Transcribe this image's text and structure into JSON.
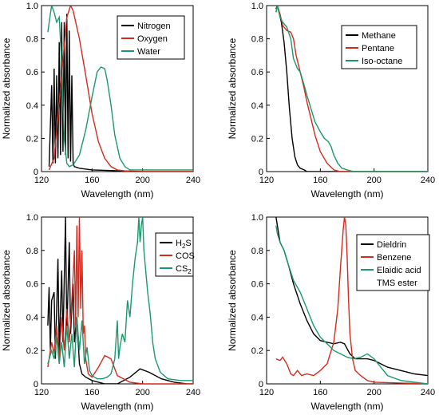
{
  "chart_data": [
    {
      "type": "line",
      "panel": "top-left",
      "xlabel": "Wavelength (nm)",
      "ylabel": "Normalized absorbance",
      "xlim": [
        120,
        240
      ],
      "ylim": [
        0,
        1.0
      ],
      "xticks": [
        120,
        160,
        200,
        240
      ],
      "yticks": [
        0,
        0.2,
        0.4,
        0.6,
        0.8,
        1.0
      ],
      "legend_position": "top-right",
      "series": [
        {
          "name": "Nitrogen",
          "color": "#000000",
          "x": [
            126,
            128,
            129,
            130,
            131,
            132,
            133,
            134,
            135,
            136,
            137,
            138,
            139,
            140,
            141,
            142,
            143,
            144,
            145,
            146,
            150,
            160,
            200,
            240
          ],
          "y": [
            0.03,
            0.52,
            0.05,
            0.62,
            0.05,
            0.58,
            0.08,
            0.78,
            0.1,
            0.9,
            0.12,
            0.9,
            0.1,
            0.95,
            0.08,
            0.85,
            0.06,
            0.58,
            0.05,
            0.03,
            0.02,
            0.01,
            0.0,
            0.0
          ]
        },
        {
          "name": "Oxygen",
          "color": "#d62a1e",
          "x": [
            126,
            130,
            135,
            140,
            143,
            145,
            150,
            155,
            160,
            165,
            170,
            175,
            180,
            190,
            200,
            240
          ],
          "y": [
            0.01,
            0.08,
            0.5,
            0.93,
            1.0,
            0.97,
            0.8,
            0.58,
            0.35,
            0.18,
            0.08,
            0.03,
            0.01,
            0.0,
            0.0,
            0.0
          ]
        },
        {
          "name": "Water",
          "color": "#1a9a6c",
          "x": [
            125,
            127,
            128,
            130,
            132,
            134,
            136,
            138,
            140,
            142,
            145,
            150,
            155,
            160,
            164,
            167,
            170,
            172,
            175,
            178,
            182,
            186,
            190,
            200,
            220,
            240
          ],
          "y": [
            0.84,
            0.95,
            1.0,
            0.96,
            0.9,
            0.93,
            0.65,
            0.2,
            0.05,
            0.03,
            0.04,
            0.1,
            0.25,
            0.45,
            0.6,
            0.63,
            0.62,
            0.55,
            0.4,
            0.22,
            0.08,
            0.03,
            0.01,
            0.01,
            0.01,
            0.01
          ]
        }
      ]
    },
    {
      "type": "line",
      "panel": "top-right",
      "xlabel": "Wavelength (nm)",
      "ylabel": "Normalized absorbance",
      "xlim": [
        120,
        240
      ],
      "ylim": [
        0,
        1.0
      ],
      "xticks": [
        120,
        160,
        200,
        240
      ],
      "yticks": [
        0,
        0.2,
        0.4,
        0.6,
        0.8,
        1.0
      ],
      "legend_position": "top-right",
      "series": [
        {
          "name": "Methane",
          "color": "#000000",
          "x": [
            127,
            128,
            129,
            131,
            133,
            135,
            137,
            139,
            141,
            143,
            145,
            148,
            150,
            155,
            240
          ],
          "y": [
            0.98,
            1.0,
            0.97,
            0.9,
            0.78,
            0.6,
            0.38,
            0.2,
            0.09,
            0.04,
            0.02,
            0.01,
            0.0,
            0.0,
            0.0
          ]
        },
        {
          "name": "Pentane",
          "color": "#d62a1e",
          "x": [
            127,
            128,
            130,
            132,
            135,
            138,
            140,
            142,
            145,
            148,
            150,
            153,
            156,
            160,
            165,
            170,
            175,
            240
          ],
          "y": [
            0.96,
            1.0,
            0.95,
            0.88,
            0.85,
            0.84,
            0.8,
            0.7,
            0.6,
            0.5,
            0.42,
            0.32,
            0.22,
            0.12,
            0.05,
            0.01,
            0.0,
            0.0
          ]
        },
        {
          "name": "Iso-octane",
          "color": "#1a9a6c",
          "x": [
            127,
            128,
            130,
            132,
            135,
            138,
            140,
            143,
            145,
            148,
            150,
            153,
            156,
            160,
            163,
            166,
            168,
            170,
            173,
            176,
            180,
            185,
            240
          ],
          "y": [
            0.96,
            1.0,
            0.93,
            0.9,
            0.87,
            0.8,
            0.68,
            0.62,
            0.6,
            0.52,
            0.46,
            0.38,
            0.3,
            0.24,
            0.2,
            0.18,
            0.15,
            0.1,
            0.05,
            0.02,
            0.01,
            0.0,
            0.0
          ]
        }
      ]
    },
    {
      "type": "line",
      "panel": "bottom-left",
      "xlabel": "Wavelength (nm)",
      "ylabel": "Normalized absorbance",
      "xlim": [
        120,
        240
      ],
      "ylim": [
        0,
        1.0
      ],
      "xticks": [
        120,
        160,
        200,
        240
      ],
      "yticks": [
        0,
        0.2,
        0.4,
        0.6,
        0.8,
        1.0
      ],
      "legend_position": "top-right",
      "series": [
        {
          "name": "H2S",
          "color": "#000000",
          "x": [
            125,
            126,
            127,
            128,
            130,
            131,
            133,
            134,
            136,
            137,
            139,
            140,
            142,
            143,
            145,
            146,
            148,
            150,
            152,
            155,
            160,
            170,
            180,
            190,
            198,
            205,
            215,
            225,
            235,
            240
          ],
          "y": [
            0.35,
            0.58,
            0.2,
            0.5,
            0.55,
            0.15,
            0.75,
            0.2,
            0.68,
            0.25,
            1.0,
            0.3,
            0.85,
            0.3,
            0.6,
            0.25,
            0.4,
            0.12,
            0.06,
            0.04,
            0.02,
            0.0,
            0.0,
            0.04,
            0.09,
            0.07,
            0.03,
            0.01,
            0.0,
            0.0
          ]
        },
        {
          "name": "COS",
          "color": "#d62a1e",
          "x": [
            125,
            128,
            130,
            132,
            134,
            136,
            138,
            140,
            142,
            144,
            146,
            147,
            148,
            149,
            150,
            151,
            152,
            153,
            154,
            155,
            157,
            160,
            165,
            170,
            175,
            180,
            190,
            200,
            240
          ],
          "y": [
            0.1,
            0.25,
            0.18,
            0.35,
            0.15,
            0.4,
            0.2,
            0.45,
            0.25,
            0.5,
            0.8,
            0.35,
            0.95,
            0.4,
            1.0,
            0.45,
            0.8,
            0.3,
            0.35,
            0.15,
            0.06,
            0.04,
            0.1,
            0.17,
            0.15,
            0.05,
            0.01,
            0.0,
            0.0
          ]
        },
        {
          "name": "CS2",
          "color": "#1a9a6c",
          "x": [
            125,
            128,
            130,
            132,
            134,
            136,
            138,
            140,
            142,
            144,
            146,
            148,
            150,
            152,
            154,
            156,
            158,
            160,
            164,
            168,
            172,
            175,
            178,
            180,
            181,
            182,
            184,
            186,
            188,
            190,
            192,
            194,
            196,
            197,
            198,
            199,
            200,
            201,
            202,
            204,
            206,
            208,
            210,
            214,
            220,
            230,
            240
          ],
          "y": [
            0.12,
            0.2,
            0.15,
            0.28,
            0.12,
            0.25,
            0.1,
            0.35,
            0.15,
            0.3,
            0.1,
            0.4,
            0.2,
            0.38,
            0.12,
            0.22,
            0.08,
            0.05,
            0.03,
            0.03,
            0.04,
            0.06,
            0.15,
            0.38,
            0.15,
            0.22,
            0.3,
            0.25,
            0.5,
            0.4,
            0.6,
            0.75,
            0.85,
            1.0,
            0.85,
            0.95,
            1.0,
            0.8,
            0.72,
            0.55,
            0.42,
            0.25,
            0.15,
            0.07,
            0.03,
            0.02,
            0.02
          ]
        }
      ]
    },
    {
      "type": "line",
      "panel": "bottom-right",
      "xlabel": "Wavelength (nm)",
      "ylabel": "Normalized absorbance",
      "xlim": [
        120,
        240
      ],
      "ylim": [
        0,
        1.0
      ],
      "xticks": [
        120,
        160,
        200,
        240
      ],
      "yticks": [
        0,
        0.2,
        0.4,
        0.6,
        0.8,
        1.0
      ],
      "legend_position": "top-right",
      "series": [
        {
          "name": "Dieldrin",
          "color": "#000000",
          "x": [
            127,
            128,
            130,
            133,
            136,
            140,
            145,
            150,
            155,
            160,
            165,
            170,
            175,
            178,
            182,
            186,
            190,
            195,
            200,
            210,
            220,
            230,
            240
          ],
          "y": [
            1.0,
            0.95,
            0.85,
            0.8,
            0.72,
            0.6,
            0.48,
            0.38,
            0.3,
            0.26,
            0.25,
            0.24,
            0.25,
            0.24,
            0.18,
            0.15,
            0.15,
            0.15,
            0.14,
            0.1,
            0.08,
            0.06,
            0.05
          ]
        },
        {
          "name": "Benzene",
          "color": "#d62a1e",
          "x": [
            127,
            130,
            132,
            135,
            138,
            140,
            143,
            146,
            150,
            155,
            160,
            165,
            170,
            173,
            175,
            177,
            178,
            179,
            180,
            181,
            182,
            184,
            186,
            190,
            195,
            200,
            240
          ],
          "y": [
            0.15,
            0.14,
            0.16,
            0.12,
            0.06,
            0.05,
            0.08,
            0.05,
            0.06,
            0.05,
            0.08,
            0.12,
            0.25,
            0.45,
            0.7,
            0.92,
            1.0,
            0.95,
            0.75,
            0.5,
            0.3,
            0.15,
            0.08,
            0.05,
            0.02,
            0.01,
            0.0
          ]
        },
        {
          "name": "Elaidic acid TMS ester",
          "color": "#1a9a6c",
          "x": [
            127,
            128,
            130,
            133,
            136,
            140,
            145,
            150,
            155,
            160,
            165,
            170,
            175,
            180,
            185,
            190,
            195,
            200,
            205,
            210,
            220,
            230,
            240
          ],
          "y": [
            0.95,
            0.9,
            0.85,
            0.8,
            0.72,
            0.62,
            0.55,
            0.45,
            0.35,
            0.28,
            0.24,
            0.2,
            0.18,
            0.16,
            0.15,
            0.16,
            0.18,
            0.15,
            0.1,
            0.05,
            0.02,
            0.01,
            0.0
          ]
        }
      ]
    }
  ]
}
